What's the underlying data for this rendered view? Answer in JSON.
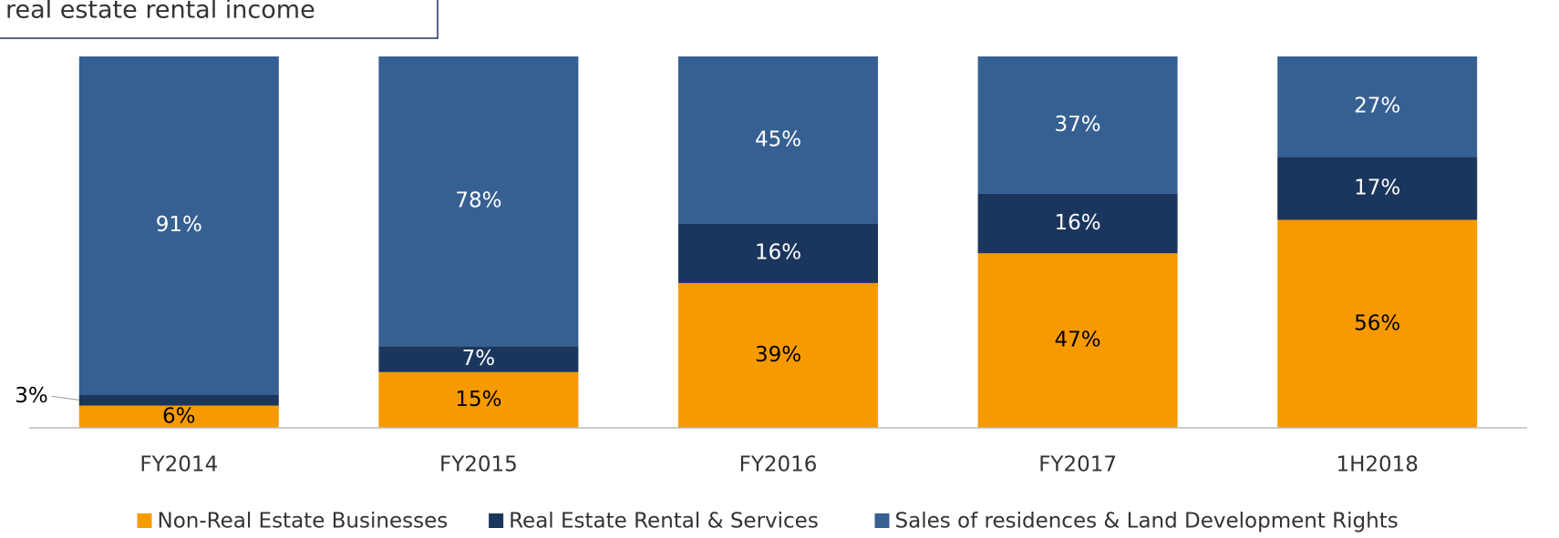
{
  "chart_data": {
    "type": "stacked_bar",
    "title": "real estate rental income",
    "categories": [
      "FY2014",
      "FY2015",
      "FY2016",
      "FY2017",
      "1H2018"
    ],
    "series": [
      {
        "name": "Non-Real Estate Businesses",
        "color": "#f79a00",
        "label_color": "#000000",
        "values": [
          6,
          15,
          39,
          47,
          56
        ],
        "value_labels": [
          "6%",
          "15%",
          "39%",
          "47%",
          "56%"
        ]
      },
      {
        "name": "Real Estate Rental & Services",
        "color": "#1b365d",
        "label_color": "#ffffff",
        "values": [
          3,
          7,
          16,
          16,
          17
        ],
        "value_labels": [
          "3%",
          "7%",
          "16%",
          "16%",
          "17%"
        ]
      },
      {
        "name": "Sales of residences & Land Development Rights",
        "color": "#366092",
        "label_color": "#ffffff",
        "values": [
          91,
          78,
          45,
          37,
          27
        ],
        "value_labels": [
          "91%",
          "78%",
          "45%",
          "37%",
          "27%"
        ]
      }
    ],
    "ylim": [
      0,
      100
    ],
    "legend": "bottom"
  }
}
